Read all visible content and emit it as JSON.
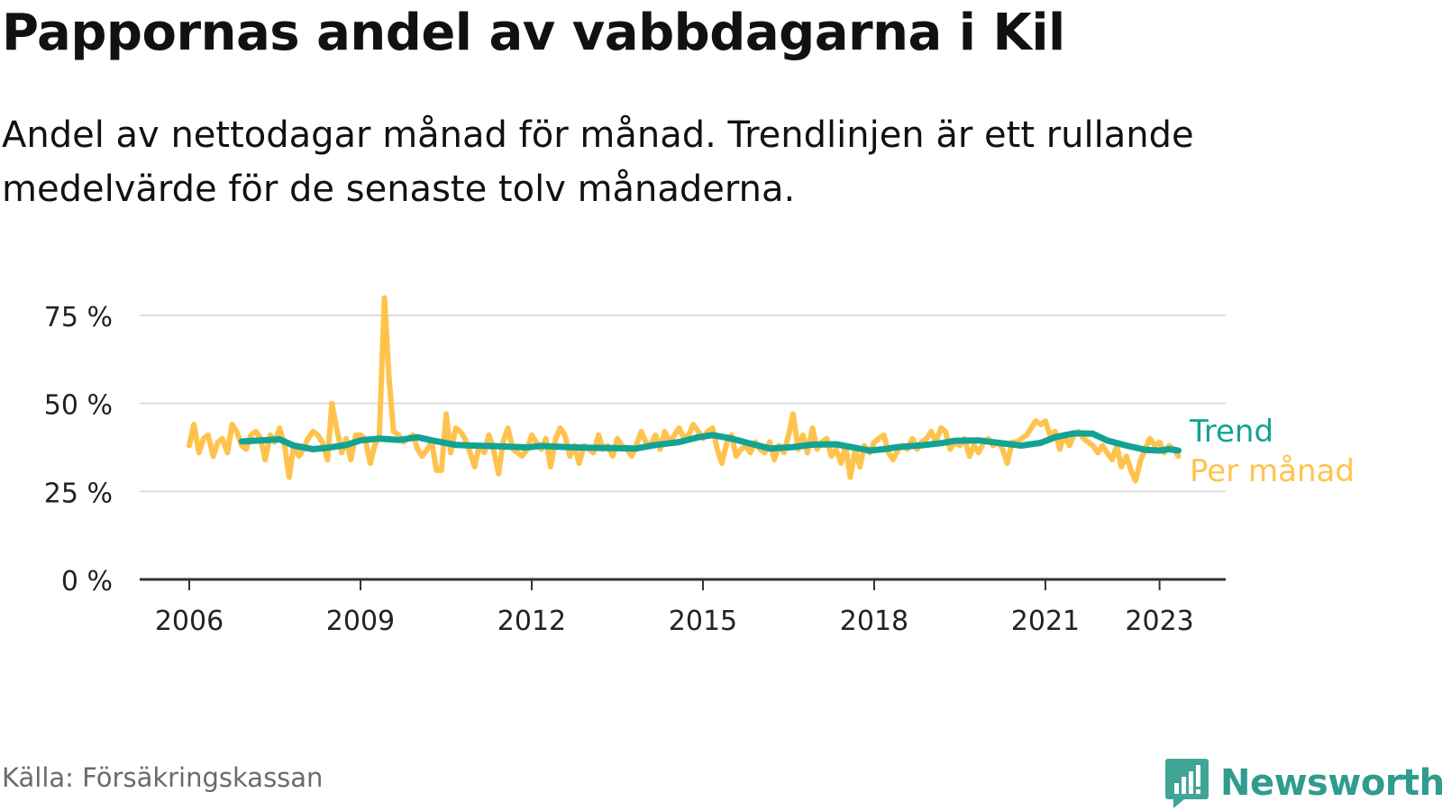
{
  "title": "Pappornas andel av vabbdagarna i Kil",
  "subtitle": "Andel av nettodagar månad för månad. Trendlinjen är ett rullande medelvärde för de senaste tolv månaderna.",
  "source": "Källa: Försäkringskassan",
  "brand": {
    "name": "Newsworthy",
    "icon": "newsworthy-logo-icon",
    "color": "#2f9c8e"
  },
  "chart_data": {
    "type": "line",
    "xlim": [
      2006,
      2024.2
    ],
    "ylim": [
      0,
      75
    ],
    "grid": true,
    "x_ticks": [
      2006,
      2009,
      2012,
      2015,
      2018,
      2021,
      2023
    ],
    "x_tick_labels": [
      "2006",
      "2009",
      "2012",
      "2015",
      "2018",
      "2021",
      "2023"
    ],
    "y_ticks": [
      0,
      25,
      50,
      75
    ],
    "y_tick_labels": [
      "0 %",
      "25 %",
      "50 %",
      "75 %"
    ],
    "legend": "right-end labels",
    "series": [
      {
        "name": "Per månad",
        "color": "#ffc34d",
        "points": [
          [
            2006.0,
            38
          ],
          [
            2006.08,
            44
          ],
          [
            2006.17,
            36
          ],
          [
            2006.25,
            40
          ],
          [
            2006.33,
            41
          ],
          [
            2006.42,
            35
          ],
          [
            2006.5,
            39
          ],
          [
            2006.58,
            40
          ],
          [
            2006.67,
            36
          ],
          [
            2006.75,
            44
          ],
          [
            2006.83,
            42
          ],
          [
            2006.92,
            38
          ],
          [
            2007.0,
            37
          ],
          [
            2007.08,
            41
          ],
          [
            2007.17,
            42
          ],
          [
            2007.25,
            40
          ],
          [
            2007.33,
            34
          ],
          [
            2007.42,
            41
          ],
          [
            2007.5,
            39
          ],
          [
            2007.58,
            43
          ],
          [
            2007.67,
            38
          ],
          [
            2007.75,
            29
          ],
          [
            2007.83,
            38
          ],
          [
            2007.92,
            35
          ],
          [
            2008.0,
            37
          ],
          [
            2008.08,
            40
          ],
          [
            2008.17,
            42
          ],
          [
            2008.25,
            41
          ],
          [
            2008.33,
            39
          ],
          [
            2008.42,
            34
          ],
          [
            2008.5,
            50
          ],
          [
            2008.58,
            43
          ],
          [
            2008.67,
            36
          ],
          [
            2008.75,
            40
          ],
          [
            2008.83,
            34
          ],
          [
            2008.92,
            41
          ],
          [
            2009.0,
            41
          ],
          [
            2009.08,
            40
          ],
          [
            2009.17,
            33
          ],
          [
            2009.25,
            38
          ],
          [
            2009.33,
            41
          ],
          [
            2009.42,
            80
          ],
          [
            2009.5,
            57
          ],
          [
            2009.58,
            42
          ],
          [
            2009.67,
            41
          ],
          [
            2009.75,
            39
          ],
          [
            2009.83,
            40
          ],
          [
            2009.92,
            41
          ],
          [
            2010.0,
            37
          ],
          [
            2010.08,
            35
          ],
          [
            2010.17,
            37
          ],
          [
            2010.25,
            39
          ],
          [
            2010.33,
            31
          ],
          [
            2010.42,
            31
          ],
          [
            2010.5,
            47
          ],
          [
            2010.58,
            36
          ],
          [
            2010.67,
            43
          ],
          [
            2010.75,
            42
          ],
          [
            2010.83,
            40
          ],
          [
            2010.92,
            36
          ],
          [
            2011.0,
            32
          ],
          [
            2011.08,
            38
          ],
          [
            2011.17,
            36
          ],
          [
            2011.25,
            41
          ],
          [
            2011.33,
            37
          ],
          [
            2011.42,
            30
          ],
          [
            2011.5,
            39
          ],
          [
            2011.58,
            43
          ],
          [
            2011.67,
            37
          ],
          [
            2011.75,
            36
          ],
          [
            2011.83,
            35
          ],
          [
            2011.92,
            37
          ],
          [
            2012.0,
            41
          ],
          [
            2012.08,
            39
          ],
          [
            2012.17,
            37
          ],
          [
            2012.25,
            40
          ],
          [
            2012.33,
            32
          ],
          [
            2012.42,
            40
          ],
          [
            2012.5,
            43
          ],
          [
            2012.58,
            41
          ],
          [
            2012.67,
            35
          ],
          [
            2012.75,
            38
          ],
          [
            2012.83,
            33
          ],
          [
            2012.92,
            38
          ],
          [
            2013.0,
            37
          ],
          [
            2013.08,
            36
          ],
          [
            2013.17,
            41
          ],
          [
            2013.25,
            37
          ],
          [
            2013.33,
            38
          ],
          [
            2013.42,
            35
          ],
          [
            2013.5,
            40
          ],
          [
            2013.58,
            38
          ],
          [
            2013.67,
            37
          ],
          [
            2013.75,
            35
          ],
          [
            2013.83,
            38
          ],
          [
            2013.92,
            42
          ],
          [
            2014.0,
            39
          ],
          [
            2014.08,
            38
          ],
          [
            2014.17,
            41
          ],
          [
            2014.25,
            37
          ],
          [
            2014.33,
            42
          ],
          [
            2014.42,
            39
          ],
          [
            2014.5,
            41
          ],
          [
            2014.58,
            43
          ],
          [
            2014.67,
            40
          ],
          [
            2014.75,
            41
          ],
          [
            2014.83,
            44
          ],
          [
            2014.92,
            42
          ],
          [
            2015.0,
            40
          ],
          [
            2015.08,
            42
          ],
          [
            2015.17,
            43
          ],
          [
            2015.25,
            37
          ],
          [
            2015.33,
            33
          ],
          [
            2015.42,
            39
          ],
          [
            2015.5,
            41
          ],
          [
            2015.58,
            35
          ],
          [
            2015.67,
            37
          ],
          [
            2015.75,
            38
          ],
          [
            2015.83,
            36
          ],
          [
            2015.92,
            39
          ],
          [
            2016.0,
            37
          ],
          [
            2016.08,
            36
          ],
          [
            2016.17,
            39
          ],
          [
            2016.25,
            34
          ],
          [
            2016.33,
            38
          ],
          [
            2016.42,
            36
          ],
          [
            2016.5,
            41
          ],
          [
            2016.58,
            47
          ],
          [
            2016.67,
            37
          ],
          [
            2016.75,
            41
          ],
          [
            2016.83,
            36
          ],
          [
            2016.92,
            43
          ],
          [
            2017.0,
            37
          ],
          [
            2017.08,
            39
          ],
          [
            2017.17,
            40
          ],
          [
            2017.25,
            35
          ],
          [
            2017.33,
            37
          ],
          [
            2017.42,
            33
          ],
          [
            2017.5,
            38
          ],
          [
            2017.58,
            29
          ],
          [
            2017.67,
            37
          ],
          [
            2017.75,
            32
          ],
          [
            2017.83,
            38
          ],
          [
            2017.92,
            36
          ],
          [
            2018.0,
            39
          ],
          [
            2018.08,
            40
          ],
          [
            2018.17,
            41
          ],
          [
            2018.25,
            36
          ],
          [
            2018.33,
            34
          ],
          [
            2018.42,
            37
          ],
          [
            2018.5,
            38
          ],
          [
            2018.58,
            37
          ],
          [
            2018.67,
            40
          ],
          [
            2018.75,
            37
          ],
          [
            2018.83,
            39
          ],
          [
            2018.92,
            40
          ],
          [
            2019.0,
            42
          ],
          [
            2019.08,
            39
          ],
          [
            2019.17,
            43
          ],
          [
            2019.25,
            42
          ],
          [
            2019.33,
            37
          ],
          [
            2019.42,
            39
          ],
          [
            2019.5,
            38
          ],
          [
            2019.58,
            40
          ],
          [
            2019.67,
            35
          ],
          [
            2019.75,
            38
          ],
          [
            2019.83,
            36
          ],
          [
            2019.92,
            39
          ],
          [
            2020.0,
            40
          ],
          [
            2020.08,
            38
          ],
          [
            2020.17,
            39
          ],
          [
            2020.25,
            37
          ],
          [
            2020.33,
            33
          ],
          [
            2020.42,
            39
          ],
          [
            2020.5,
            39
          ],
          [
            2020.58,
            40
          ],
          [
            2020.67,
            41
          ],
          [
            2020.75,
            43
          ],
          [
            2020.83,
            45
          ],
          [
            2020.92,
            44
          ],
          [
            2021.0,
            45
          ],
          [
            2021.08,
            41
          ],
          [
            2021.17,
            42
          ],
          [
            2021.25,
            37
          ],
          [
            2021.33,
            41
          ],
          [
            2021.42,
            38
          ],
          [
            2021.5,
            41
          ],
          [
            2021.58,
            42
          ],
          [
            2021.67,
            40
          ],
          [
            2021.75,
            39
          ],
          [
            2021.83,
            38
          ],
          [
            2021.92,
            36
          ],
          [
            2022.0,
            38
          ],
          [
            2022.08,
            36
          ],
          [
            2022.17,
            34
          ],
          [
            2022.25,
            38
          ],
          [
            2022.33,
            32
          ],
          [
            2022.42,
            35
          ],
          [
            2022.5,
            31
          ],
          [
            2022.58,
            28
          ],
          [
            2022.67,
            34
          ],
          [
            2022.75,
            37
          ],
          [
            2022.83,
            40
          ],
          [
            2022.92,
            38
          ],
          [
            2023.0,
            39
          ],
          [
            2023.08,
            36
          ],
          [
            2023.17,
            38
          ],
          [
            2023.25,
            37
          ],
          [
            2023.33,
            35
          ]
        ]
      },
      {
        "name": "Trend",
        "color": "#12a394",
        "points": [
          [
            2006.92,
            39.2
          ],
          [
            2007.25,
            39.5
          ],
          [
            2007.58,
            39.8
          ],
          [
            2007.83,
            38.0
          ],
          [
            2008.17,
            37.0
          ],
          [
            2008.42,
            37.4
          ],
          [
            2008.75,
            38.2
          ],
          [
            2009.0,
            39.5
          ],
          [
            2009.33,
            40.0
          ],
          [
            2009.67,
            39.6
          ],
          [
            2010.0,
            40.4
          ],
          [
            2010.25,
            39.5
          ],
          [
            2010.67,
            38.2
          ],
          [
            2011.0,
            38.0
          ],
          [
            2011.42,
            37.8
          ],
          [
            2011.92,
            37.5
          ],
          [
            2012.17,
            37.9
          ],
          [
            2012.58,
            37.6
          ],
          [
            2013.0,
            37.4
          ],
          [
            2013.42,
            37.3
          ],
          [
            2013.83,
            37.2
          ],
          [
            2014.17,
            38.2
          ],
          [
            2014.58,
            39.0
          ],
          [
            2014.92,
            40.4
          ],
          [
            2015.17,
            41.0
          ],
          [
            2015.5,
            40.0
          ],
          [
            2015.83,
            38.6
          ],
          [
            2016.17,
            37.2
          ],
          [
            2016.58,
            37.6
          ],
          [
            2016.92,
            38.3
          ],
          [
            2017.33,
            38.4
          ],
          [
            2017.67,
            37.4
          ],
          [
            2017.92,
            36.6
          ],
          [
            2018.17,
            37.0
          ],
          [
            2018.42,
            37.6
          ],
          [
            2018.83,
            38.1
          ],
          [
            2019.17,
            38.7
          ],
          [
            2019.42,
            39.4
          ],
          [
            2019.83,
            39.5
          ],
          [
            2020.17,
            38.8
          ],
          [
            2020.58,
            38.0
          ],
          [
            2020.92,
            38.8
          ],
          [
            2021.17,
            40.4
          ],
          [
            2021.5,
            41.5
          ],
          [
            2021.83,
            41.4
          ],
          [
            2022.08,
            39.5
          ],
          [
            2022.42,
            38.0
          ],
          [
            2022.75,
            36.8
          ],
          [
            2023.0,
            36.6
          ],
          [
            2023.17,
            37.0
          ],
          [
            2023.33,
            36.6
          ]
        ]
      }
    ]
  }
}
